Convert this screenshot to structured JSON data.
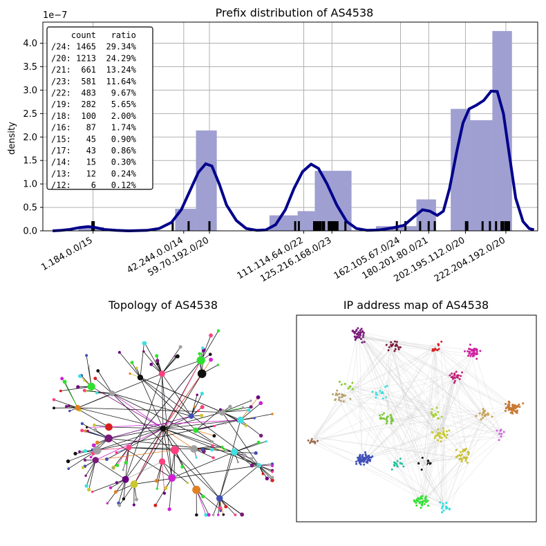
{
  "chart_data": [
    {
      "type": "histogram",
      "title": "Prefix distribution of AS4538",
      "ylabel": "density",
      "y_multiplier": "1e−7",
      "ylim": [
        0,
        4.45
      ],
      "yticks": [
        "0.0",
        "0.5",
        "1.0",
        "1.5",
        "2.0",
        "2.5",
        "3.0",
        "3.5",
        "4.0"
      ],
      "ytick_values": [
        0,
        0.5,
        1.0,
        1.5,
        2.0,
        2.5,
        3.0,
        3.5,
        4.0
      ],
      "xlim": [
        -0.1,
        3.94
      ],
      "xticks": [
        {
          "label": "1.184.0.0/15",
          "v": 0.31
        },
        {
          "label": "42.244.0.0/14",
          "v": 1.05
        },
        {
          "label": "59.70.192.0/20",
          "v": 1.26
        },
        {
          "label": "111.114.64.0/22",
          "v": 2.03
        },
        {
          "label": "125.216.168.0/23",
          "v": 2.26
        },
        {
          "label": "162.105.67.0/24",
          "v": 2.82
        },
        {
          "label": "180.201.80.0/21",
          "v": 3.05
        },
        {
          "label": "202.195.112.0/20",
          "v": 3.35
        },
        {
          "label": "222.204.192.0/20",
          "v": 3.68
        }
      ],
      "grid": true,
      "bar_color": "#9f9fd1",
      "bars": [
        {
          "x0": 0.19,
          "x1": 0.4,
          "value": 0.08
        },
        {
          "x0": 0.98,
          "x1": 1.15,
          "value": 0.47
        },
        {
          "x0": 1.15,
          "x1": 1.32,
          "value": 2.14
        },
        {
          "x0": 1.75,
          "x1": 1.98,
          "value": 0.33
        },
        {
          "x0": 1.98,
          "x1": 2.12,
          "value": 0.42
        },
        {
          "x0": 2.12,
          "x1": 2.42,
          "value": 1.28
        },
        {
          "x0": 2.62,
          "x1": 2.95,
          "value": 0.1
        },
        {
          "x0": 2.95,
          "x1": 3.11,
          "value": 0.67
        },
        {
          "x0": 3.23,
          "x1": 3.39,
          "value": 2.6
        },
        {
          "x0": 3.39,
          "x1": 3.57,
          "value": 2.36
        },
        {
          "x0": 3.57,
          "x1": 3.73,
          "value": 4.26
        }
      ],
      "kde_color": "#00008b",
      "kde": [
        [
          -0.02,
          0.0
        ],
        [
          0.05,
          0.01
        ],
        [
          0.12,
          0.03
        ],
        [
          0.2,
          0.07
        ],
        [
          0.27,
          0.09
        ],
        [
          0.33,
          0.07
        ],
        [
          0.4,
          0.03
        ],
        [
          0.5,
          0.01
        ],
        [
          0.6,
          0.0
        ],
        [
          0.75,
          0.01
        ],
        [
          0.85,
          0.05
        ],
        [
          0.95,
          0.18
        ],
        [
          1.03,
          0.45
        ],
        [
          1.1,
          0.85
        ],
        [
          1.17,
          1.25
        ],
        [
          1.23,
          1.43
        ],
        [
          1.28,
          1.38
        ],
        [
          1.34,
          1.0
        ],
        [
          1.4,
          0.55
        ],
        [
          1.48,
          0.22
        ],
        [
          1.56,
          0.05
        ],
        [
          1.65,
          0.01
        ],
        [
          1.72,
          0.02
        ],
        [
          1.8,
          0.13
        ],
        [
          1.88,
          0.45
        ],
        [
          1.95,
          0.9
        ],
        [
          2.02,
          1.26
        ],
        [
          2.09,
          1.42
        ],
        [
          2.15,
          1.33
        ],
        [
          2.22,
          1.0
        ],
        [
          2.3,
          0.55
        ],
        [
          2.38,
          0.2
        ],
        [
          2.46,
          0.05
        ],
        [
          2.55,
          0.01
        ],
        [
          2.65,
          0.02
        ],
        [
          2.75,
          0.06
        ],
        [
          2.85,
          0.12
        ],
        [
          2.93,
          0.3
        ],
        [
          3.0,
          0.45
        ],
        [
          3.06,
          0.42
        ],
        [
          3.12,
          0.33
        ],
        [
          3.17,
          0.42
        ],
        [
          3.22,
          0.9
        ],
        [
          3.28,
          1.7
        ],
        [
          3.33,
          2.3
        ],
        [
          3.38,
          2.6
        ],
        [
          3.44,
          2.68
        ],
        [
          3.5,
          2.78
        ],
        [
          3.56,
          2.98
        ],
        [
          3.61,
          2.97
        ],
        [
          3.66,
          2.5
        ],
        [
          3.71,
          1.6
        ],
        [
          3.76,
          0.7
        ],
        [
          3.82,
          0.2
        ],
        [
          3.87,
          0.05
        ],
        [
          3.91,
          0.02
        ]
      ],
      "rug": [
        {
          "v": 0.31,
          "w": "thick"
        },
        {
          "v": 0.96,
          "w": "thin"
        },
        {
          "v": 1.09,
          "w": "thin"
        },
        {
          "v": 1.26,
          "w": "thin"
        },
        {
          "v": 1.96,
          "w": "thin"
        },
        {
          "v": 1.99,
          "w": "thin"
        },
        {
          "v": 2.12,
          "w": "thick"
        },
        {
          "v": 2.14,
          "w": "thick"
        },
        {
          "v": 2.16,
          "w": "thick"
        },
        {
          "v": 2.19,
          "w": "thick"
        },
        {
          "v": 2.24,
          "w": "thick"
        },
        {
          "v": 2.26,
          "w": "thick"
        },
        {
          "v": 2.28,
          "w": "thick"
        },
        {
          "v": 2.3,
          "w": "thick"
        },
        {
          "v": 2.37,
          "w": "thin"
        },
        {
          "v": 2.79,
          "w": "thin"
        },
        {
          "v": 2.86,
          "w": "thin"
        },
        {
          "v": 2.98,
          "w": "thin"
        },
        {
          "v": 3.05,
          "w": "thin"
        },
        {
          "v": 3.1,
          "w": "thin"
        },
        {
          "v": 3.36,
          "w": "thick"
        },
        {
          "v": 3.49,
          "w": "thin"
        },
        {
          "v": 3.55,
          "w": "thin"
        },
        {
          "v": 3.6,
          "w": "thin"
        },
        {
          "v": 3.65,
          "w": "thick"
        },
        {
          "v": 3.68,
          "w": "thick"
        },
        {
          "v": 3.7,
          "w": "thick"
        }
      ],
      "legend_box": {
        "placement": "top-left",
        "lines": [
          "    count   ratio",
          "/24: 1465  29.34%",
          "/20: 1213  24.29%",
          "/21:  661  13.24%",
          "/23:  581  11.64%",
          "/22:  483   9.67%",
          "/19:  282   5.65%",
          "/18:  100   2.00%",
          "/16:   87   1.74%",
          "/15:   45   0.90%",
          "/17:   43   0.86%",
          "/14:   15   0.30%",
          "/13:   12   0.24%",
          "/12:    6   0.12%"
        ]
      }
    },
    {
      "type": "network",
      "title": "Topology of AS4538"
    },
    {
      "type": "scatter",
      "title": "IP address map of AS4538",
      "clusters": [
        {
          "cx": 0.26,
          "cy": 0.1,
          "n": 40,
          "color": "#7a1a7a"
        },
        {
          "cx": 0.4,
          "cy": 0.15,
          "n": 18,
          "color": "#7a1a3d"
        },
        {
          "cx": 0.58,
          "cy": 0.16,
          "n": 12,
          "color": "#d62020"
        },
        {
          "cx": 0.74,
          "cy": 0.18,
          "n": 40,
          "color": "#d020a0"
        },
        {
          "cx": 0.66,
          "cy": 0.3,
          "n": 22,
          "color": "#c0207a"
        },
        {
          "cx": 0.9,
          "cy": 0.45,
          "n": 55,
          "color": "#c87830"
        },
        {
          "cx": 0.78,
          "cy": 0.48,
          "n": 18,
          "color": "#c8a050"
        },
        {
          "cx": 0.18,
          "cy": 0.4,
          "n": 20,
          "color": "#b8a070"
        },
        {
          "cx": 0.07,
          "cy": 0.6,
          "n": 10,
          "color": "#9a6a4a"
        },
        {
          "cx": 0.38,
          "cy": 0.5,
          "n": 25,
          "color": "#7ac83a"
        },
        {
          "cx": 0.35,
          "cy": 0.38,
          "n": 14,
          "color": "#40e0e0"
        },
        {
          "cx": 0.28,
          "cy": 0.7,
          "n": 70,
          "color": "#4050b8"
        },
        {
          "cx": 0.42,
          "cy": 0.72,
          "n": 14,
          "color": "#20c0a0"
        },
        {
          "cx": 0.6,
          "cy": 0.58,
          "n": 30,
          "color": "#c8c830"
        },
        {
          "cx": 0.7,
          "cy": 0.68,
          "n": 28,
          "color": "#c8c030"
        },
        {
          "cx": 0.58,
          "cy": 0.47,
          "n": 15,
          "color": "#a8d040"
        },
        {
          "cx": 0.52,
          "cy": 0.9,
          "n": 35,
          "color": "#30e030"
        },
        {
          "cx": 0.62,
          "cy": 0.93,
          "n": 12,
          "color": "#20e0e0"
        },
        {
          "cx": 0.22,
          "cy": 0.35,
          "n": 8,
          "color": "#80d020"
        },
        {
          "cx": 0.86,
          "cy": 0.58,
          "n": 8,
          "color": "#d060e0"
        },
        {
          "cx": 0.53,
          "cy": 0.72,
          "n": 6,
          "color": "#111111"
        }
      ]
    }
  ]
}
